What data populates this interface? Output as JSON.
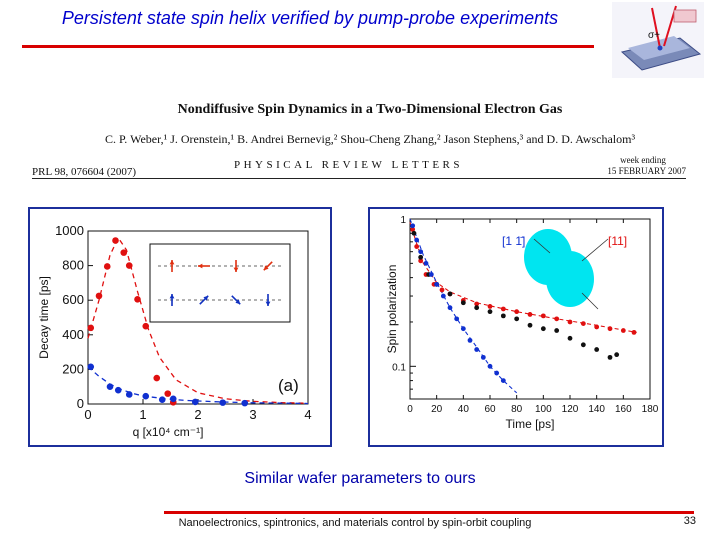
{
  "slide": {
    "title": "Persistent state spin helix verified by pump-probe experiments",
    "caption": "Similar wafer parameters to ours",
    "footer": "Nanoelectronics, spintronics, and materials control by spin-orbit coupling",
    "page_number": "33"
  },
  "paper": {
    "title": "Nondiffusive Spin Dynamics in a Two-Dimensional Electron Gas",
    "authors": "C. P. Weber,¹ J. Orenstein,¹ B. Andrei Bernevig,² Shou-Cheng Zhang,² Jason Stephens,³ and D. D. Awschalom³",
    "journal": "PHYSICAL REVIEW LETTERS",
    "citation": "PRL 98, 076604 (2007)",
    "week_ending": "week ending",
    "date": "15 FEBRUARY 2007"
  },
  "corner_figure": {
    "label": "σ+",
    "colors": {
      "laser": "#e01020",
      "substrate": "#7a8ab8"
    }
  },
  "colors": {
    "accent": "#0000cc",
    "rule": "#d80000",
    "panel_border": "#1c2f9c",
    "red_series": "#e01010",
    "blue_series": "#1030d0",
    "black_series": "#111111",
    "blob": "#00e5f0"
  },
  "chart_data": [
    {
      "type": "scatter",
      "panel_label": "(a)",
      "xlabel": "q [x10⁴ cm⁻¹]",
      "ylabel": "Decay time [ps]",
      "xlim": [
        0,
        4
      ],
      "ylim": [
        0,
        1000
      ],
      "xticks": [
        "0",
        "1",
        "2",
        "3",
        "4"
      ],
      "yticks": [
        "0",
        "200",
        "400",
        "600",
        "800",
        "1000"
      ],
      "series": [
        {
          "color": "red",
          "points": [
            [
              0.05,
              440
            ],
            [
              0.2,
              625
            ],
            [
              0.35,
              795
            ],
            [
              0.5,
              945
            ],
            [
              0.65,
              875
            ],
            [
              0.75,
              800
            ],
            [
              0.9,
              605
            ],
            [
              1.05,
              450
            ],
            [
              1.25,
              150
            ],
            [
              1.45,
              60
            ],
            [
              1.55,
              10
            ]
          ]
        },
        {
          "color": "blue",
          "points": [
            [
              0.05,
              215
            ],
            [
              0.4,
              100
            ],
            [
              0.55,
              80
            ],
            [
              0.75,
              55
            ],
            [
              1.05,
              45
            ],
            [
              1.35,
              25
            ],
            [
              1.55,
              30
            ],
            [
              1.95,
              12
            ],
            [
              2.45,
              8
            ],
            [
              2.85,
              5
            ]
          ]
        }
      ],
      "fit_curves": [
        {
          "color": "red",
          "points": [
            [
              0,
              380
            ],
            [
              0.2,
              600
            ],
            [
              0.4,
              860
            ],
            [
              0.55,
              960
            ],
            [
              0.7,
              890
            ],
            [
              0.9,
              650
            ],
            [
              1.1,
              430
            ],
            [
              1.3,
              270
            ],
            [
              1.6,
              140
            ],
            [
              2.0,
              65
            ],
            [
              2.5,
              30
            ],
            [
              3.0,
              15
            ],
            [
              3.5,
              8
            ],
            [
              4.0,
              4
            ]
          ]
        },
        {
          "color": "blue",
          "points": [
            [
              0,
              215
            ],
            [
              0.2,
              160
            ],
            [
              0.4,
              115
            ],
            [
              0.6,
              85
            ],
            [
              0.8,
              62
            ],
            [
              1.0,
              47
            ],
            [
              1.4,
              30
            ],
            [
              1.8,
              20
            ],
            [
              2.4,
              12
            ],
            [
              3.0,
              7
            ],
            [
              3.5,
              5
            ],
            [
              4.0,
              3
            ]
          ]
        }
      ],
      "inset": {
        "top_row": [
          "up",
          "left",
          "down",
          "down-left"
        ],
        "bottom_row": [
          "up",
          "up-right",
          "down-right",
          "down"
        ]
      }
    },
    {
      "type": "scatter",
      "xlabel": "Time [ps]",
      "ylabel": "Spin polarization",
      "xlim": [
        0,
        180
      ],
      "ylim": [
        0.06,
        1
      ],
      "yscale": "log",
      "xticks": [
        "0",
        "20",
        "40",
        "60",
        "80",
        "100",
        "120",
        "140",
        "160",
        "180"
      ],
      "yticks": [
        "1",
        "0.1"
      ],
      "legend": [
        "[1 1̄]",
        "[11]"
      ],
      "series": [
        {
          "color": "red",
          "points": [
            [
              2,
              0.85
            ],
            [
              5,
              0.65
            ],
            [
              8,
              0.52
            ],
            [
              12,
              0.42
            ],
            [
              18,
              0.36
            ],
            [
              24,
              0.33
            ],
            [
              30,
              0.31
            ],
            [
              40,
              0.28
            ],
            [
              50,
              0.265
            ],
            [
              60,
              0.255
            ],
            [
              70,
              0.245
            ],
            [
              80,
              0.235
            ],
            [
              90,
              0.225
            ],
            [
              100,
              0.22
            ],
            [
              110,
              0.21
            ],
            [
              120,
              0.2
            ],
            [
              130,
              0.195
            ],
            [
              140,
              0.185
            ],
            [
              150,
              0.18
            ],
            [
              160,
              0.175
            ],
            [
              168,
              0.17
            ]
          ]
        },
        {
          "color": "black",
          "points": [
            [
              3,
              0.8
            ],
            [
              8,
              0.55
            ],
            [
              14,
              0.42
            ],
            [
              20,
              0.36
            ],
            [
              30,
              0.31
            ],
            [
              40,
              0.27
            ],
            [
              50,
              0.25
            ],
            [
              60,
              0.235
            ],
            [
              70,
              0.22
            ],
            [
              80,
              0.21
            ],
            [
              90,
              0.19
            ],
            [
              100,
              0.18
            ],
            [
              110,
              0.175
            ],
            [
              120,
              0.155
            ],
            [
              130,
              0.14
            ],
            [
              140,
              0.13
            ],
            [
              150,
              0.115
            ],
            [
              155,
              0.12
            ]
          ]
        },
        {
          "color": "blue",
          "points": [
            [
              2,
              0.9
            ],
            [
              5,
              0.72
            ],
            [
              8,
              0.6
            ],
            [
              12,
              0.5
            ],
            [
              16,
              0.42
            ],
            [
              20,
              0.36
            ],
            [
              25,
              0.3
            ],
            [
              30,
              0.25
            ],
            [
              35,
              0.21
            ],
            [
              40,
              0.18
            ],
            [
              45,
              0.15
            ],
            [
              50,
              0.13
            ],
            [
              55,
              0.115
            ],
            [
              60,
              0.1
            ],
            [
              65,
              0.09
            ],
            [
              70,
              0.08
            ]
          ]
        }
      ],
      "fit_curves": [
        {
          "color": "red",
          "points": [
            [
              0,
              0.95
            ],
            [
              5,
              0.68
            ],
            [
              10,
              0.5
            ],
            [
              20,
              0.37
            ],
            [
              30,
              0.32
            ],
            [
              50,
              0.27
            ],
            [
              80,
              0.235
            ],
            [
              110,
              0.21
            ],
            [
              140,
              0.19
            ],
            [
              170,
              0.17
            ]
          ]
        },
        {
          "color": "blue",
          "points": [
            [
              0,
              1.0
            ],
            [
              10,
              0.57
            ],
            [
              20,
              0.37
            ],
            [
              30,
              0.25
            ],
            [
              40,
              0.18
            ],
            [
              50,
              0.135
            ],
            [
              60,
              0.1
            ],
            [
              70,
              0.08
            ],
            [
              80,
              0.066
            ]
          ]
        }
      ]
    }
  ]
}
